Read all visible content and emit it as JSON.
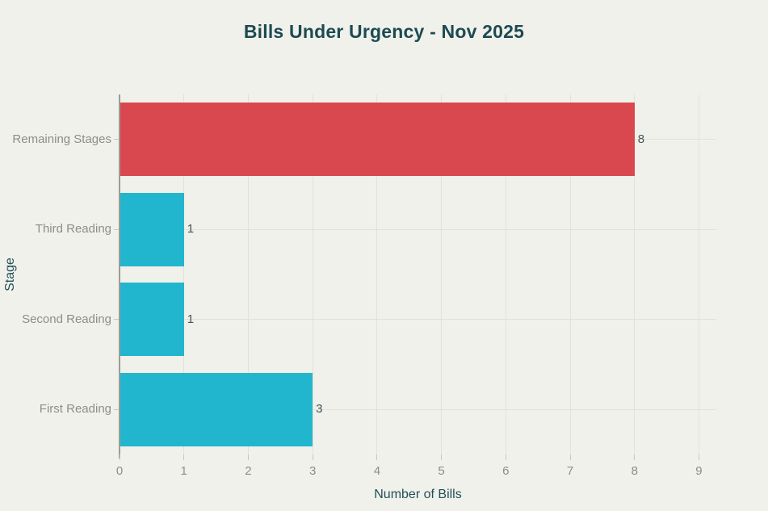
{
  "chart_data": {
    "type": "bar",
    "orientation": "horizontal",
    "title": "Bills Under Urgency - Nov 2025",
    "xlabel": "Number of Bills",
    "ylabel": "Stage",
    "categories": [
      "Remaining Stages",
      "Third Reading",
      "Second Reading",
      "First Reading"
    ],
    "values": [
      8,
      1,
      1,
      3
    ],
    "value_labels": [
      "8",
      "1",
      "1",
      "3"
    ],
    "bar_colors": [
      "#d9484e",
      "#22b6ce",
      "#22b6ce",
      "#22b6ce"
    ],
    "xticks": [
      "0",
      "1",
      "2",
      "3",
      "4",
      "5",
      "6",
      "7",
      "8",
      "9"
    ],
    "xlim": [
      0,
      9.27
    ],
    "grid": true,
    "legend_position": "none",
    "colors": {
      "background": "#f0f1ea",
      "title": "#1d4a53",
      "axis_title": "#215059",
      "tick_label": "#8d8d8d",
      "value_label": "#42545b",
      "gridline": "#e1e2da",
      "axis_line": "#9c9c98",
      "tick_mark": "#c7c8c2"
    }
  }
}
